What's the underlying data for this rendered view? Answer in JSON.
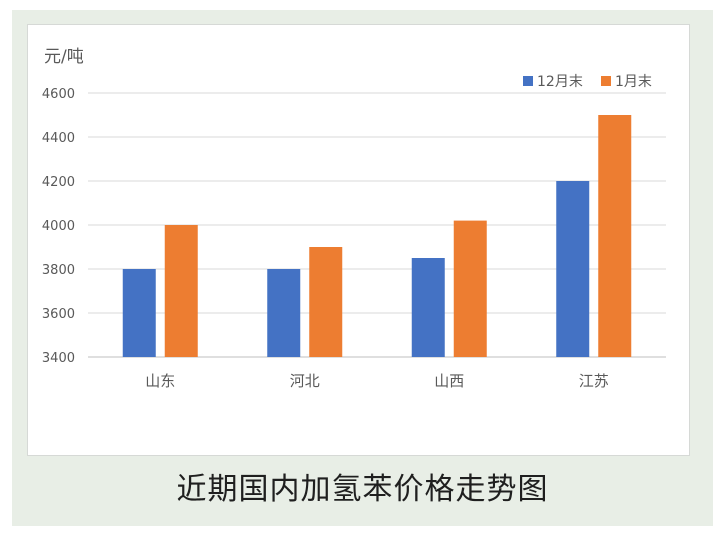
{
  "caption": "近期国内加氢苯价格走势图",
  "chart_data": {
    "type": "bar",
    "unit_label": "元/吨",
    "categories": [
      "山东",
      "河北",
      "山西",
      "江苏"
    ],
    "series": [
      {
        "name": "12月末",
        "values": [
          3800,
          3800,
          3850,
          4200
        ],
        "color": "#4472c4"
      },
      {
        "name": "1月末",
        "values": [
          4000,
          3900,
          4020,
          4500
        ],
        "color": "#ed7d31"
      }
    ],
    "ylim": [
      3400,
      4600
    ],
    "yticks": [
      3400,
      3600,
      3800,
      4000,
      4200,
      4400,
      4600
    ],
    "grid": true,
    "legend_position": "top-right"
  }
}
